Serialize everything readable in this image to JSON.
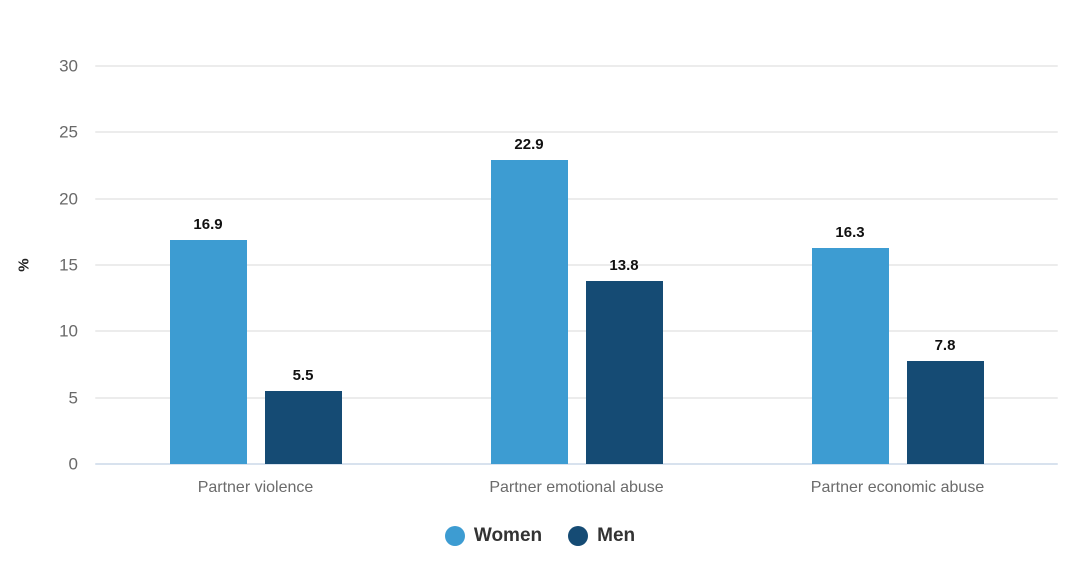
{
  "colors": {
    "women": "#3D9CD2",
    "men": "#154B74",
    "gridline": "#ececec",
    "zero_line": "#d8e2ee",
    "tick_text": "#696969",
    "category_text": "#6b6b6b",
    "value_text": "#111111",
    "legend_text": "#333333",
    "background": "#ffffff"
  },
  "y_axis": {
    "unit_label": "%",
    "tick_labels": [
      "0",
      "5",
      "10",
      "15",
      "20",
      "25",
      "30"
    ]
  },
  "legend": {
    "items": [
      {
        "label": "Women",
        "color_key": "women"
      },
      {
        "label": "Men",
        "color_key": "men"
      }
    ]
  },
  "chart_data": {
    "type": "bar",
    "title": "",
    "categories": [
      "Partner violence",
      "Partner emotional abuse",
      "Partner economic abuse"
    ],
    "series": [
      {
        "name": "Women",
        "color_key": "women",
        "values": [
          16.9,
          22.9,
          16.3
        ]
      },
      {
        "name": "Men",
        "color_key": "men",
        "values": [
          5.5,
          13.8,
          7.8
        ]
      }
    ],
    "value_labels": [
      "16.9",
      "5.5",
      "22.9",
      "13.8",
      "16.3",
      "7.8"
    ],
    "xlabel": "",
    "ylabel": "%",
    "ylim": [
      0,
      30
    ],
    "yticks": [
      0,
      5,
      10,
      15,
      20,
      25,
      30
    ],
    "grid": true,
    "legend_position": "bottom",
    "value_labels_shown": true
  }
}
